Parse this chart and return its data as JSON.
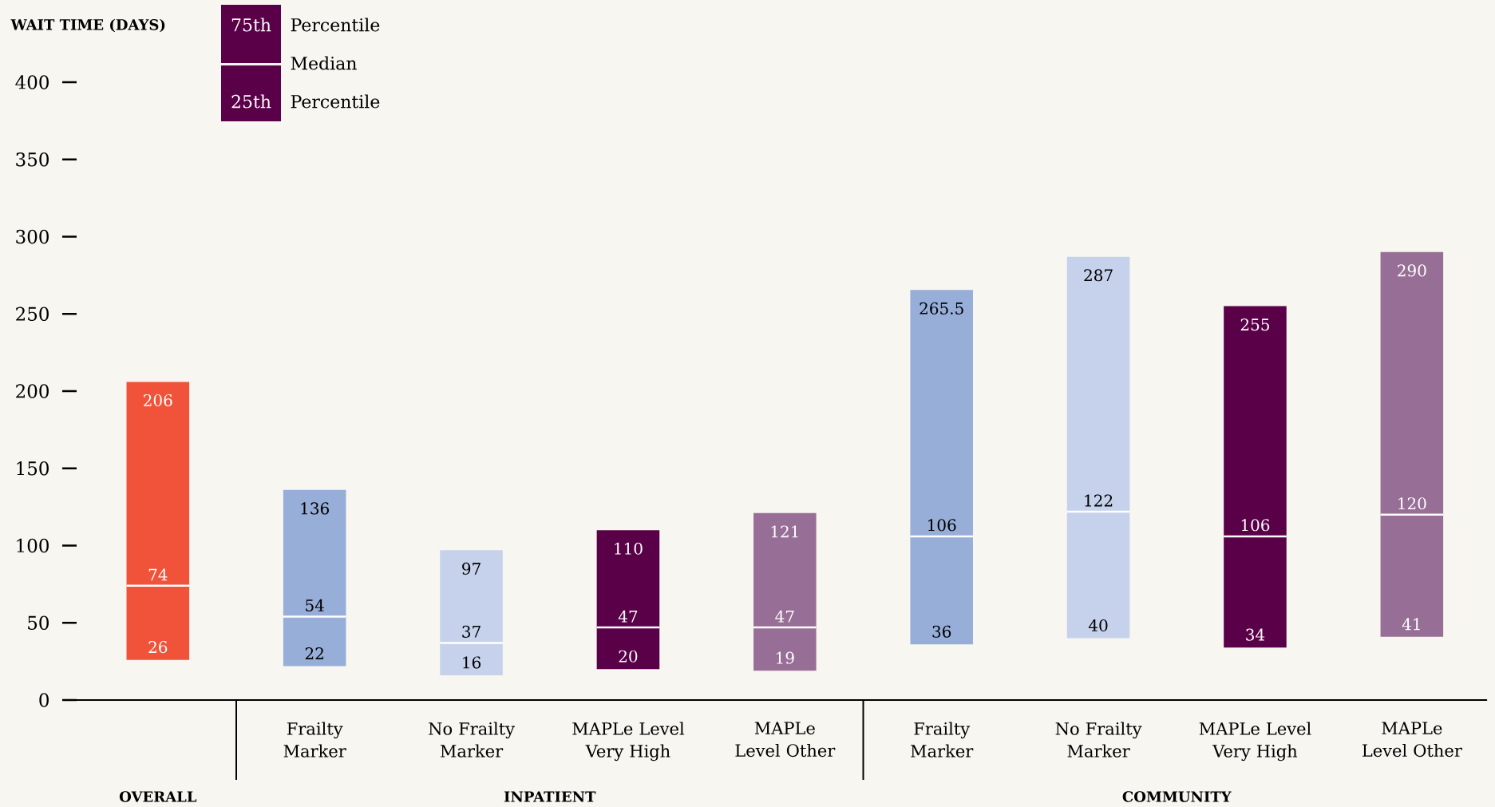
{
  "chart_data": {
    "type": "box",
    "ylabel": "WAIT TIME (DAYS)",
    "categories": [
      null,
      "Frailty Marker",
      "No Frailty Marker",
      "MAPLe Level Very High",
      "MAPLe Level Other",
      "Frailty Marker",
      "No Frailty Marker",
      "MAPLe Level Very High",
      "MAPLe Level Other"
    ],
    "colors": [
      "#f0533a",
      "#97aed9",
      "#c6d1ec",
      "#5a0048",
      "#976e95",
      "#97aed9",
      "#c6d1ec",
      "#5a0048",
      "#976e95"
    ],
    "boxes": [
      {
        "low": 26,
        "q1": 26,
        "median": 74,
        "q3": 206,
        "high": 206
      },
      {
        "low": 22,
        "q1": 22,
        "median": 54,
        "q3": 136,
        "high": 136
      },
      {
        "low": 16,
        "q1": 16,
        "median": 37,
        "q3": 97,
        "high": 97
      },
      {
        "low": 20,
        "q1": 20,
        "median": 47,
        "q3": 110,
        "high": 110
      },
      {
        "low": 19,
        "q1": 19,
        "median": 47,
        "q3": 121,
        "high": 121
      },
      {
        "low": 36,
        "q1": 36,
        "median": 106,
        "q3": 265.5,
        "high": 265.5
      },
      {
        "low": 40,
        "q1": 40,
        "median": 122,
        "q3": 287,
        "high": 287
      },
      {
        "low": 34,
        "q1": 34,
        "median": 106,
        "q3": 255,
        "high": 255
      },
      {
        "low": 41,
        "q1": 41,
        "median": 120,
        "q3": 290,
        "high": 290
      }
    ],
    "ylim": [
      0,
      400
    ],
    "yticks": [
      0,
      50,
      100,
      150,
      200,
      250,
      300,
      350,
      400
    ],
    "annotations": [
      "OVERALL",
      "INPATIENT",
      "COMMUNITY",
      "75th",
      "Percentile",
      "Median",
      "25th",
      "Percentile",
      {
        "text": "206",
        "y": 206
      },
      {
        "text": "74",
        "y": 74
      },
      {
        "text": "26",
        "y": 26
      },
      {
        "text": "136",
        "y": 136
      },
      {
        "text": "54",
        "y": 54
      },
      {
        "text": "22",
        "y": 22
      },
      {
        "text": "97",
        "y": 97
      },
      {
        "text": "37",
        "y": 37
      },
      {
        "text": "16",
        "y": 16
      },
      {
        "text": "110",
        "y": 110
      },
      {
        "text": "47",
        "y": 47
      },
      {
        "text": "20",
        "y": 20
      },
      {
        "text": "121",
        "y": 121
      },
      {
        "text": "47",
        "y": 47
      },
      {
        "text": "19",
        "y": 19
      },
      {
        "text": "265.5",
        "y": 265.5
      },
      {
        "text": "106",
        "y": 106
      },
      {
        "text": "36",
        "y": 36
      },
      {
        "text": "287",
        "y": 287
      },
      {
        "text": "122",
        "y": 122
      },
      {
        "text": "40",
        "y": 40
      },
      {
        "text": "255",
        "y": 255
      },
      {
        "text": "106",
        "y": 106
      },
      {
        "text": "34",
        "y": 34
      },
      {
        "text": "290",
        "y": 290
      },
      {
        "text": "120",
        "y": 120
      },
      {
        "text": "41",
        "y": 41
      }
    ]
  }
}
